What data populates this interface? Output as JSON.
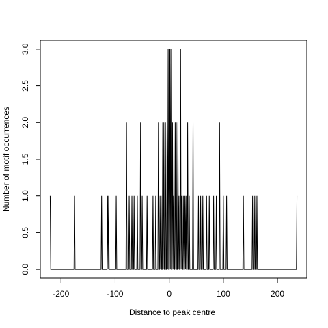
{
  "chart_data": {
    "type": "line",
    "xlabel": "Distance to peak centre",
    "ylabel": "Number of motif occurrences",
    "x": [
      -220,
      -219,
      -176,
      -175,
      -174,
      -126,
      -125,
      -124,
      -115,
      -114,
      -113,
      -112,
      -111,
      -99,
      -98,
      -97,
      -80,
      -79,
      -78,
      -75,
      -74,
      -73,
      -70,
      -69,
      -68,
      -66,
      -65,
      -64,
      -60,
      -59,
      -58,
      -54,
      -53,
      -52,
      -51,
      -50,
      -49,
      -42,
      -41,
      -40,
      -31,
      -30,
      -29,
      -26,
      -25,
      -24,
      -21,
      -20,
      -19,
      -18,
      -17,
      -16,
      -15,
      -14,
      -13,
      -12,
      -11,
      -10,
      -9,
      -8,
      -7,
      -6,
      -5,
      -4,
      -3,
      -2,
      -1,
      0,
      1,
      2,
      3,
      4,
      5,
      6,
      7,
      8,
      9,
      10,
      11,
      12,
      13,
      14,
      15,
      16,
      17,
      18,
      19,
      20,
      21,
      22,
      23,
      24,
      25,
      26,
      27,
      28,
      29,
      30,
      31,
      32,
      33,
      34,
      35,
      36,
      37,
      38,
      43,
      44,
      45,
      53,
      54,
      55,
      57,
      58,
      59,
      61,
      62,
      63,
      68,
      69,
      70,
      73,
      74,
      75,
      81,
      82,
      83,
      86,
      87,
      88,
      92,
      93,
      94,
      99,
      100,
      101,
      105,
      106,
      107,
      136,
      137,
      138,
      153,
      154,
      155,
      157,
      158,
      159,
      161,
      162,
      163,
      235,
      236
    ],
    "values": [
      1,
      0,
      0,
      1,
      0,
      0,
      1,
      0,
      0,
      1,
      0,
      1,
      0,
      0,
      1,
      0,
      0,
      2,
      0,
      0,
      1,
      0,
      0,
      1,
      0,
      0,
      1,
      0,
      0,
      1,
      0,
      0,
      2,
      0,
      0,
      1,
      0,
      0,
      1,
      0,
      0,
      1,
      0,
      0,
      1,
      0,
      0,
      2,
      0,
      0,
      1,
      0,
      1,
      0,
      0,
      2,
      0,
      2,
      0,
      0,
      2,
      0,
      0,
      2,
      0,
      3,
      0,
      0,
      3,
      0,
      3,
      0,
      0,
      2,
      0,
      1,
      0,
      0,
      2,
      0,
      2,
      0,
      0,
      2,
      0,
      1,
      0,
      0,
      3,
      0,
      1,
      0,
      0,
      1,
      0,
      0,
      1,
      0,
      1,
      0,
      0,
      2,
      0,
      0,
      1,
      0,
      0,
      2,
      0,
      0,
      1,
      0,
      0,
      1,
      0,
      0,
      1,
      0,
      0,
      1,
      0,
      0,
      1,
      0,
      0,
      1,
      0,
      0,
      1,
      0,
      0,
      2,
      0,
      0,
      1,
      0,
      0,
      1,
      0,
      0,
      1,
      0,
      0,
      1,
      0,
      0,
      1,
      0,
      0,
      1,
      0,
      0,
      1
    ],
    "color": "#000000",
    "xlim": [
      -238.24,
      254.24
    ],
    "ylim": [
      -0.12,
      3.12
    ],
    "xticks": [
      -200,
      -100,
      0,
      100,
      200
    ],
    "yticks": [
      {
        "value": 0,
        "label": "0.0"
      },
      0.5,
      {
        "value": 1,
        "label": "1.0"
      },
      1.5,
      {
        "value": 2,
        "label": "2.0"
      },
      2.5,
      {
        "value": 3,
        "label": "3.0"
      }
    ]
  }
}
